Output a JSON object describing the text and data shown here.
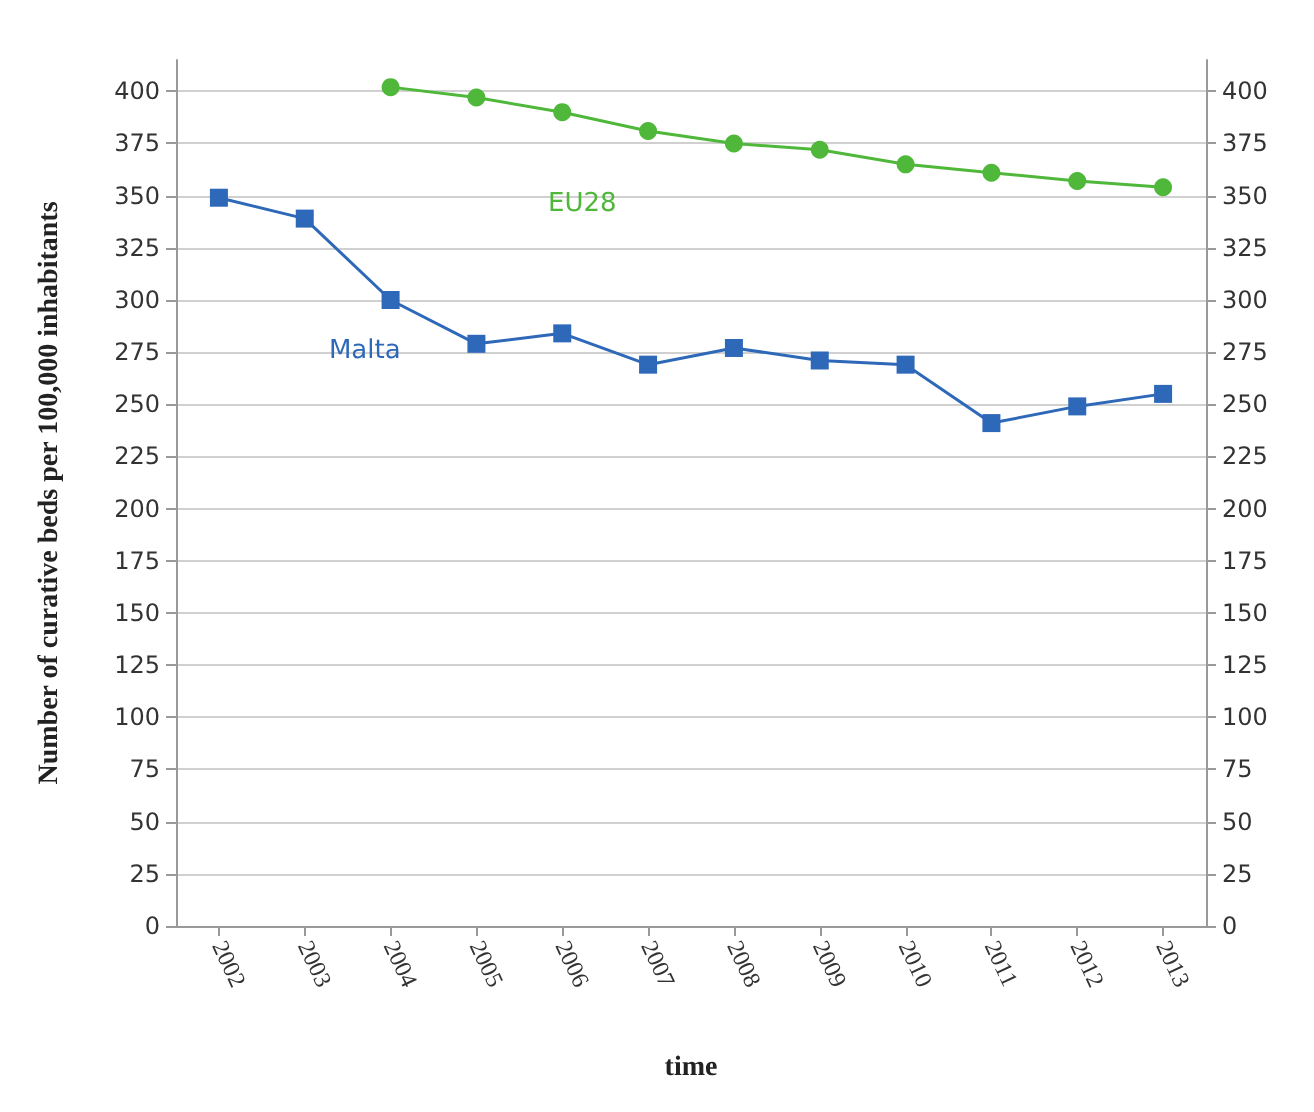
{
  "chart_data": {
    "type": "line",
    "xlabel": "time",
    "ylabel": "Number of curative beds per 100,000 inhabitants",
    "categories": [
      "2002",
      "2003",
      "2004",
      "2005",
      "2006",
      "2007",
      "2008",
      "2009",
      "2010",
      "2011",
      "2012",
      "2013"
    ],
    "series": [
      {
        "name": "Malta",
        "color": "#2e68b8",
        "marker": "square",
        "values": [
          349,
          339,
          300,
          279,
          284,
          269,
          277,
          271,
          269,
          241,
          249,
          255
        ]
      },
      {
        "name": "EU28",
        "color": "#4fb83a",
        "marker": "circle",
        "values": [
          null,
          null,
          402,
          397,
          390,
          381,
          375,
          372,
          365,
          361,
          357,
          354
        ]
      }
    ],
    "ylim": [
      0,
      415
    ],
    "yticks": [
      0,
      25,
      50,
      75,
      100,
      125,
      150,
      175,
      200,
      225,
      250,
      275,
      300,
      325,
      350,
      375,
      400
    ],
    "y2lim": [
      0,
      415
    ],
    "y2ticks": [
      0,
      25,
      50,
      75,
      100,
      125,
      150,
      175,
      200,
      225,
      250,
      275,
      300,
      325,
      350,
      375,
      400
    ],
    "grid": "y",
    "legend": false
  }
}
